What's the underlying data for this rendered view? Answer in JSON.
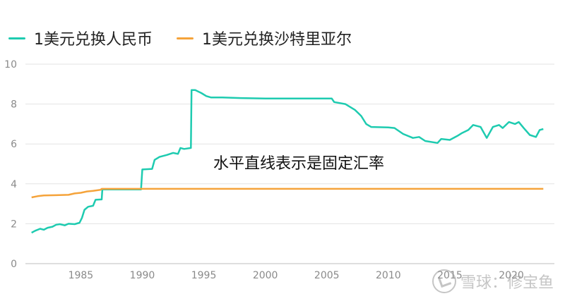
{
  "chart_data": {
    "type": "line",
    "title": "",
    "xlabel": "",
    "ylabel": "",
    "xlim": [
      1980.5,
      2023.5
    ],
    "ylim": [
      0,
      10
    ],
    "x_ticks": [
      1985,
      1990,
      1995,
      2000,
      2005,
      2010,
      2015,
      2020
    ],
    "y_ticks": [
      0,
      2,
      4,
      6,
      8,
      10
    ],
    "grid": "horizontal",
    "legend_position": "top-left",
    "annotation": "水平直线表示是固定汇率",
    "series": [
      {
        "name": "1美元兑换人民币",
        "color": "#1ecbb0",
        "points": [
          [
            1981.0,
            1.55
          ],
          [
            1981.3,
            1.65
          ],
          [
            1981.7,
            1.75
          ],
          [
            1982.0,
            1.7
          ],
          [
            1982.3,
            1.8
          ],
          [
            1982.7,
            1.85
          ],
          [
            1983.0,
            1.95
          ],
          [
            1983.3,
            1.98
          ],
          [
            1983.7,
            1.92
          ],
          [
            1984.0,
            2.0
          ],
          [
            1984.5,
            1.98
          ],
          [
            1984.9,
            2.05
          ],
          [
            1985.1,
            2.3
          ],
          [
            1985.3,
            2.7
          ],
          [
            1985.6,
            2.85
          ],
          [
            1986.0,
            2.9
          ],
          [
            1986.2,
            3.2
          ],
          [
            1986.7,
            3.22
          ],
          [
            1986.75,
            3.72
          ],
          [
            1989.9,
            3.72
          ],
          [
            1990.0,
            4.72
          ],
          [
            1990.8,
            4.75
          ],
          [
            1991.0,
            5.2
          ],
          [
            1991.4,
            5.35
          ],
          [
            1992.0,
            5.45
          ],
          [
            1992.5,
            5.55
          ],
          [
            1992.9,
            5.5
          ],
          [
            1993.1,
            5.8
          ],
          [
            1993.4,
            5.75
          ],
          [
            1993.95,
            5.8
          ],
          [
            1994.0,
            8.7
          ],
          [
            1994.3,
            8.7
          ],
          [
            1994.8,
            8.55
          ],
          [
            1995.2,
            8.4
          ],
          [
            1995.6,
            8.33
          ],
          [
            1996.5,
            8.33
          ],
          [
            1998.0,
            8.3
          ],
          [
            2000.0,
            8.28
          ],
          [
            2003.0,
            8.28
          ],
          [
            2005.4,
            8.28
          ],
          [
            2005.6,
            8.1
          ],
          [
            2006.5,
            8.0
          ],
          [
            2007.3,
            7.7
          ],
          [
            2007.8,
            7.4
          ],
          [
            2008.2,
            7.0
          ],
          [
            2008.6,
            6.85
          ],
          [
            2010.0,
            6.83
          ],
          [
            2010.5,
            6.8
          ],
          [
            2011.2,
            6.5
          ],
          [
            2012.0,
            6.3
          ],
          [
            2012.5,
            6.35
          ],
          [
            2013.0,
            6.15
          ],
          [
            2014.0,
            6.05
          ],
          [
            2014.3,
            6.25
          ],
          [
            2015.0,
            6.2
          ],
          [
            2015.6,
            6.4
          ],
          [
            2016.0,
            6.55
          ],
          [
            2016.5,
            6.7
          ],
          [
            2016.9,
            6.95
          ],
          [
            2017.5,
            6.85
          ],
          [
            2018.0,
            6.3
          ],
          [
            2018.5,
            6.85
          ],
          [
            2019.0,
            6.95
          ],
          [
            2019.3,
            6.8
          ],
          [
            2019.8,
            7.1
          ],
          [
            2020.3,
            7.0
          ],
          [
            2020.6,
            7.1
          ],
          [
            2021.0,
            6.8
          ],
          [
            2021.5,
            6.45
          ],
          [
            2022.0,
            6.35
          ],
          [
            2022.3,
            6.7
          ],
          [
            2022.6,
            6.75
          ]
        ]
      },
      {
        "name": "1美元兑换沙特里亚尔",
        "color": "#f5a33a",
        "points": [
          [
            1981.0,
            3.32
          ],
          [
            1981.5,
            3.38
          ],
          [
            1982.0,
            3.42
          ],
          [
            1983.0,
            3.43
          ],
          [
            1984.0,
            3.45
          ],
          [
            1984.5,
            3.52
          ],
          [
            1985.0,
            3.55
          ],
          [
            1985.5,
            3.62
          ],
          [
            1986.0,
            3.65
          ],
          [
            1986.6,
            3.7
          ],
          [
            1986.7,
            3.75
          ],
          [
            2022.6,
            3.75
          ]
        ]
      }
    ]
  },
  "watermark": {
    "text": "雪球：修宝鱼"
  }
}
